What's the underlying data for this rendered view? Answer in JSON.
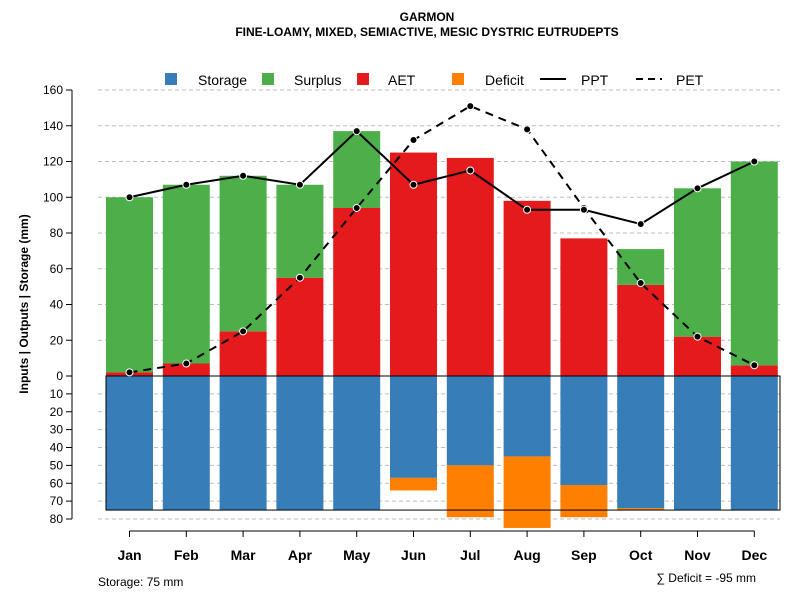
{
  "chart_data": {
    "type": "bar",
    "title": "GARMON",
    "subtitle": "FINE-LOAMY, MIXED, SEMIACTIVE, MESIC DYSTRIC EUTRUDEPTS",
    "ylabel": "Inputs | Outputs | Storage    (mm)",
    "categories": [
      "Jan",
      "Feb",
      "Mar",
      "Apr",
      "May",
      "Jun",
      "Jul",
      "Aug",
      "Sep",
      "Oct",
      "Nov",
      "Dec"
    ],
    "ylim_upper": [
      0,
      160
    ],
    "ylim_lower": [
      0,
      80
    ],
    "yticks_upper": [
      "0",
      "20",
      "40",
      "60",
      "80",
      "100",
      "120",
      "140",
      "160"
    ],
    "yticks_lower": [
      "10",
      "20",
      "30",
      "40",
      "50",
      "60",
      "70",
      "80"
    ],
    "colors": {
      "storage": "#377eb8",
      "surplus": "#4daf4a",
      "aet": "#e41a1c",
      "deficit": "#ff7f00",
      "line": "#000000"
    },
    "legend": {
      "storage": "Storage",
      "surplus": "Surplus",
      "aet": "AET",
      "deficit": "Deficit",
      "ppt": "PPT",
      "pet": "PET"
    },
    "series": [
      {
        "name": "AET",
        "values": [
          2,
          7,
          25,
          55,
          94,
          125,
          122,
          98,
          77,
          51,
          22,
          6
        ]
      },
      {
        "name": "Surplus",
        "values": [
          98,
          100,
          87,
          52,
          43,
          0,
          0,
          0,
          0,
          20,
          83,
          114
        ]
      },
      {
        "name": "Storage",
        "values": [
          75,
          75,
          75,
          75,
          75,
          57,
          50,
          45,
          61,
          74,
          75,
          75
        ]
      },
      {
        "name": "Deficit",
        "values": [
          0,
          0,
          0,
          0,
          0,
          7,
          29,
          40,
          18,
          1,
          0,
          0
        ]
      },
      {
        "name": "PPT",
        "values": [
          100,
          107,
          112,
          107,
          137,
          107,
          115,
          93,
          93,
          85,
          105,
          120
        ]
      },
      {
        "name": "PET",
        "values": [
          2,
          7,
          25,
          55,
          94,
          132,
          151,
          138,
          94,
          52,
          22,
          6
        ]
      }
    ],
    "storage_capacity": 75
  },
  "footer": {
    "storage_label": "Storage: 75 mm",
    "deficit_label": "∑ Deficit = -95 mm"
  }
}
